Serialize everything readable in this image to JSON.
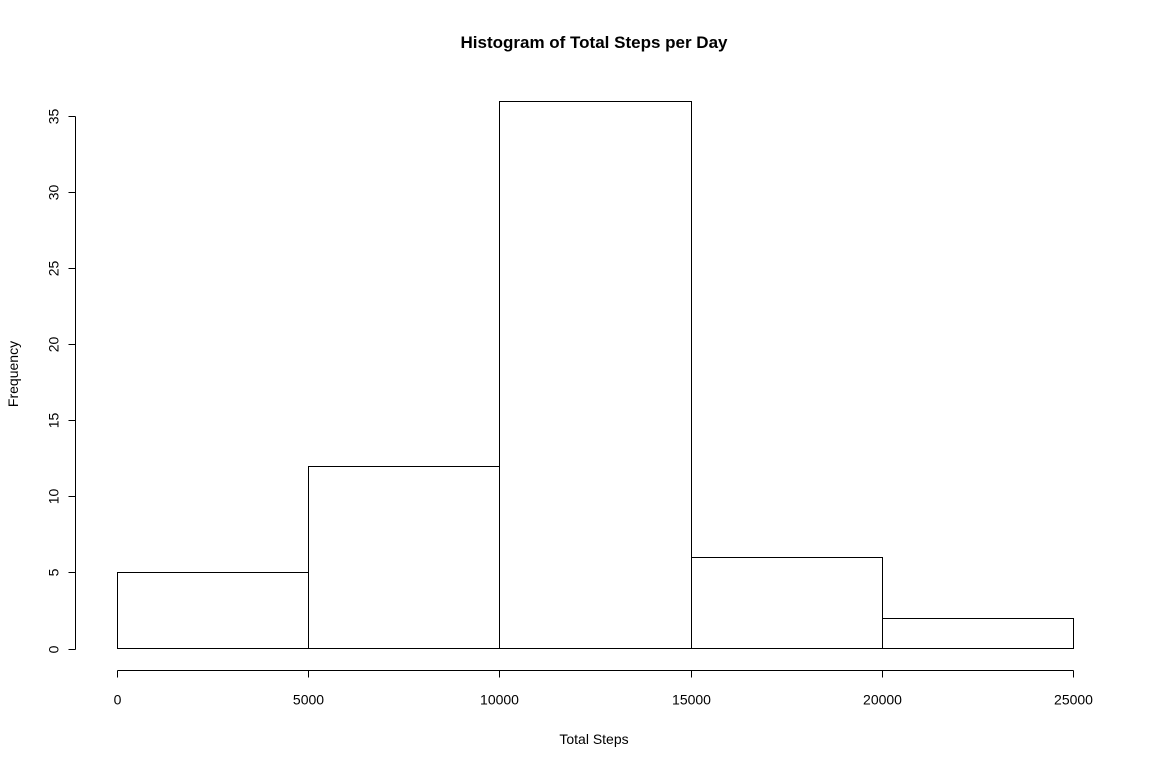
{
  "chart_data": {
    "type": "bar",
    "subtype": "histogram",
    "title": "Histogram of Total Steps per Day",
    "xlabel": "Total Steps",
    "ylabel": "Frequency",
    "bins": [
      {
        "start": 0,
        "end": 5000,
        "count": 5
      },
      {
        "start": 5000,
        "end": 10000,
        "count": 12
      },
      {
        "start": 10000,
        "end": 15000,
        "count": 36
      },
      {
        "start": 15000,
        "end": 20000,
        "count": 6
      },
      {
        "start": 20000,
        "end": 25000,
        "count": 2
      }
    ],
    "xlim": [
      0,
      25000
    ],
    "ylim": [
      0,
      36
    ],
    "xticks": [
      0,
      5000,
      10000,
      15000,
      20000,
      25000
    ],
    "yticks": [
      0,
      5,
      10,
      15,
      20,
      25,
      30,
      35
    ],
    "grid": false,
    "colors": {
      "bar_fill": "#ffffff",
      "bar_stroke": "#000000"
    }
  }
}
